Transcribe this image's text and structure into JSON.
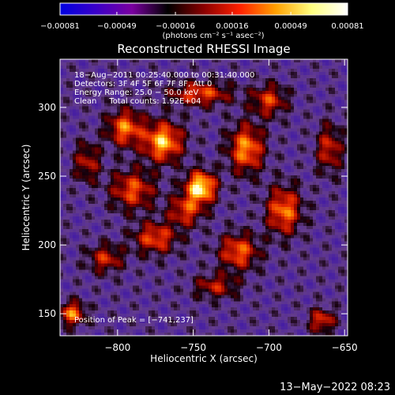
{
  "chart_data": {
    "type": "heatmap",
    "title": "Reconstructed RHESSI Image",
    "xlabel": "Heliocentric X (arcsec)",
    "ylabel": "Heliocentric Y (arcsec)",
    "xlim": [
      -838,
      -648
    ],
    "ylim": [
      134,
      335
    ],
    "x_ticks": [
      -800,
      -750,
      -700,
      -650
    ],
    "x_tick_labels": [
      "−800",
      "−750",
      "−700",
      "−650"
    ],
    "y_ticks": [
      150,
      200,
      250,
      300
    ],
    "y_tick_labels": [
      "150",
      "200",
      "250",
      "300"
    ],
    "colorbar": {
      "range": [
        -0.00081,
        0.00081
      ],
      "ticks": [
        -0.00081,
        -0.00049,
        -0.00016,
        0.00016,
        0.00049,
        0.00081
      ],
      "tick_labels": [
        "−0.00081",
        "−0.00049",
        "−0.00016",
        "0.00016",
        "0.00049",
        "0.00081"
      ],
      "unit_label": "(photons cm⁻² s⁻¹ asec⁻²)",
      "colors": [
        "#0000e0",
        "#3a00c8",
        "#7a00a0",
        "#000000",
        "#8a0000",
        "#ff2000",
        "#ffa000",
        "#ffff80",
        "#ffffff"
      ]
    },
    "annotations": [
      "18−Aug−2011 00:25:40.000 to 00:31:40.000",
      "Detectors: 3F 4F 5F 6F 7F 8F, Att 0",
      "Energy Range: 25.0 − 50.0 keV",
      "Clean     Total counts: 1.92E+04"
    ],
    "peak_label": "Position of Peak = [−741,237]",
    "peak_position": [
      -741,
      237
    ],
    "sources": [
      {
        "x": -745,
        "y": 242,
        "amp": 1.0,
        "sx": 7,
        "sy": 8
      },
      {
        "x": -770,
        "y": 275,
        "amp": 0.85,
        "sx": 9,
        "sy": 10
      },
      {
        "x": -795,
        "y": 285,
        "amp": 0.7,
        "sx": 8,
        "sy": 9
      },
      {
        "x": -715,
        "y": 270,
        "amp": 0.75,
        "sx": 8,
        "sy": 12
      },
      {
        "x": -690,
        "y": 225,
        "amp": 0.7,
        "sx": 8,
        "sy": 12
      },
      {
        "x": -790,
        "y": 240,
        "amp": 0.6,
        "sx": 10,
        "sy": 10
      },
      {
        "x": -775,
        "y": 205,
        "amp": 0.6,
        "sx": 10,
        "sy": 8
      },
      {
        "x": -720,
        "y": 195,
        "amp": 0.65,
        "sx": 9,
        "sy": 9
      },
      {
        "x": -745,
        "y": 310,
        "amp": 0.6,
        "sx": 14,
        "sy": 6
      },
      {
        "x": -700,
        "y": 305,
        "amp": 0.55,
        "sx": 8,
        "sy": 8
      },
      {
        "x": -820,
        "y": 260,
        "amp": 0.45,
        "sx": 6,
        "sy": 10
      },
      {
        "x": -808,
        "y": 190,
        "amp": 0.5,
        "sx": 8,
        "sy": 7
      },
      {
        "x": -830,
        "y": 150,
        "amp": 0.7,
        "sx": 6,
        "sy": 6
      },
      {
        "x": -660,
        "y": 270,
        "amp": 0.5,
        "sx": 6,
        "sy": 12
      },
      {
        "x": -665,
        "y": 145,
        "amp": 0.55,
        "sx": 6,
        "sy": 6
      },
      {
        "x": -735,
        "y": 170,
        "amp": 0.45,
        "sx": 10,
        "sy": 6
      },
      {
        "x": -755,
        "y": 225,
        "amp": 0.55,
        "sx": 8,
        "sy": 8
      }
    ]
  },
  "footer_timestamp": "13−May−2022 08:23"
}
